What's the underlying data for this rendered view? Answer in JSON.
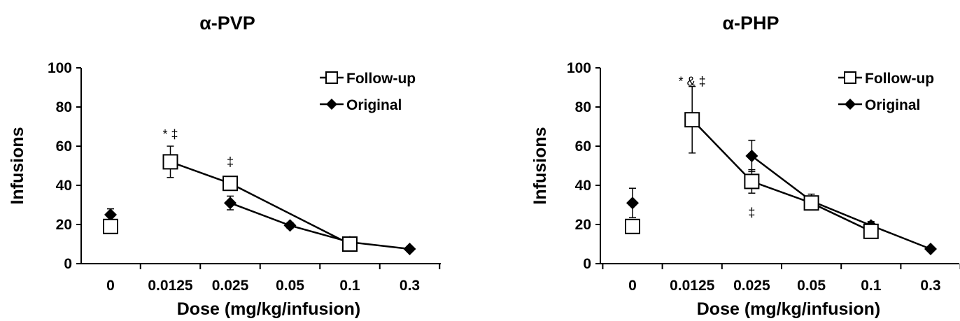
{
  "chart_data": [
    {
      "type": "line",
      "title": "α-PVP",
      "xlabel": "Dose (mg/kg/infusion)",
      "ylabel": "Infusions",
      "categories": [
        "0",
        "0.0125",
        "0.025",
        "0.05",
        "0.1",
        "0.3"
      ],
      "ylim": [
        0,
        100
      ],
      "yticks": [
        0,
        20,
        40,
        60,
        80,
        100
      ],
      "legend_position": "top-right",
      "series": [
        {
          "name": "Follow-up",
          "marker": "open-square",
          "values": [
            19,
            52,
            41,
            null,
            10,
            null
          ],
          "errors": [
            3,
            8,
            3,
            null,
            2,
            null
          ],
          "connected_from_index": 1
        },
        {
          "name": "Original",
          "marker": "filled-diamond",
          "values": [
            25,
            null,
            31,
            19.5,
            11,
            7.5
          ],
          "errors": [
            3,
            null,
            3.5,
            1.5,
            1.5,
            1
          ],
          "connected_from_index": 2
        }
      ],
      "annotations": [
        {
          "text": "* ‡",
          "category_index": 1,
          "y": 66
        },
        {
          "text": "‡",
          "category_index": 2,
          "y": 52
        }
      ]
    },
    {
      "type": "line",
      "title": "α-PHP",
      "xlabel": "Dose (mg/kg/infusion)",
      "ylabel": "Infusions",
      "categories": [
        "0",
        "0.0125",
        "0.025",
        "0.05",
        "0.1",
        "0.3"
      ],
      "ylim": [
        0,
        100
      ],
      "yticks": [
        0,
        20,
        40,
        60,
        80,
        100
      ],
      "legend_position": "top-right",
      "series": [
        {
          "name": "Follow-up",
          "marker": "open-square",
          "values": [
            19,
            73.5,
            42,
            31,
            16.5,
            null
          ],
          "errors": [
            3.5,
            17,
            6,
            3,
            2,
            null
          ],
          "connected_from_index": 1
        },
        {
          "name": "Original",
          "marker": "filled-diamond",
          "values": [
            31,
            null,
            55,
            32,
            19.5,
            7.5
          ],
          "errors": [
            7.5,
            null,
            8,
            3.5,
            2,
            1
          ],
          "connected_from_index": 2
        }
      ],
      "annotations": [
        {
          "text": "* & ‡",
          "category_index": 1,
          "y": 93
        },
        {
          "text": "‡",
          "category_index": 2,
          "y": 26
        }
      ]
    }
  ]
}
